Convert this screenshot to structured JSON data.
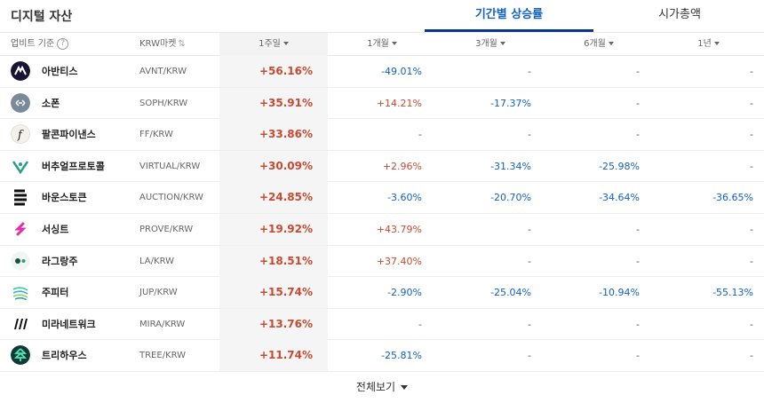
{
  "header": {
    "title": "디지털 자산",
    "tabs": [
      {
        "label": "기간별 상승률",
        "active": true
      },
      {
        "label": "시가총액",
        "active": false
      }
    ]
  },
  "columns": {
    "basis": "업비트 기준",
    "basis_help_icon": "question-circle-icon",
    "market": "KRW마켓",
    "week1": "1주일",
    "month1": "1개월",
    "month3": "3개월",
    "month6": "6개월",
    "year1": "1년"
  },
  "rows": [
    {
      "name": "아반티스",
      "market": "AVNT/KRW",
      "icon": "avantis-logo",
      "w1": "+56.16%",
      "m1": "-49.01%",
      "m3": "-",
      "m6": "-",
      "y1": "-"
    },
    {
      "name": "소폰",
      "market": "SOPH/KRW",
      "icon": "sophon-logo",
      "w1": "+35.91%",
      "m1": "+14.21%",
      "m3": "-17.37%",
      "m6": "-",
      "y1": "-"
    },
    {
      "name": "팔콘파이낸스",
      "market": "FF/KRW",
      "icon": "falcon-finance-logo",
      "w1": "+33.86%",
      "m1": "-",
      "m3": "-",
      "m6": "-",
      "y1": "-"
    },
    {
      "name": "버추얼프로토콜",
      "market": "VIRTUAL/KRW",
      "icon": "virtuals-protocol-logo",
      "w1": "+30.09%",
      "m1": "+2.96%",
      "m3": "-31.34%",
      "m6": "-25.98%",
      "y1": "-"
    },
    {
      "name": "바운스토큰",
      "market": "AUCTION/KRW",
      "icon": "bounce-token-logo",
      "w1": "+24.85%",
      "m1": "-3.60%",
      "m3": "-20.70%",
      "m6": "-34.64%",
      "y1": "-36.65%"
    },
    {
      "name": "서싱트",
      "market": "PROVE/KRW",
      "icon": "succinct-logo",
      "w1": "+19.92%",
      "m1": "+43.79%",
      "m3": "-",
      "m6": "-",
      "y1": "-"
    },
    {
      "name": "라그랑주",
      "market": "LA/KRW",
      "icon": "lagrange-logo",
      "w1": "+18.51%",
      "m1": "+37.40%",
      "m3": "-",
      "m6": "-",
      "y1": "-"
    },
    {
      "name": "주피터",
      "market": "JUP/KRW",
      "icon": "jupiter-logo",
      "w1": "+15.74%",
      "m1": "-2.90%",
      "m3": "-25.04%",
      "m6": "-10.94%",
      "y1": "-55.13%"
    },
    {
      "name": "미라네트워크",
      "market": "MIRA/KRW",
      "icon": "mira-network-logo",
      "w1": "+13.76%",
      "m1": "-",
      "m3": "-",
      "m6": "-",
      "y1": "-"
    },
    {
      "name": "트리하우스",
      "market": "TREE/KRW",
      "icon": "treehouse-logo",
      "w1": "+11.74%",
      "m1": "-25.81%",
      "m3": "-",
      "m6": "-",
      "y1": "-"
    }
  ],
  "footer": {
    "label": "전체보기"
  },
  "colors": {
    "up": "#c84a31",
    "down": "#1261c4",
    "accent": "#093687"
  }
}
